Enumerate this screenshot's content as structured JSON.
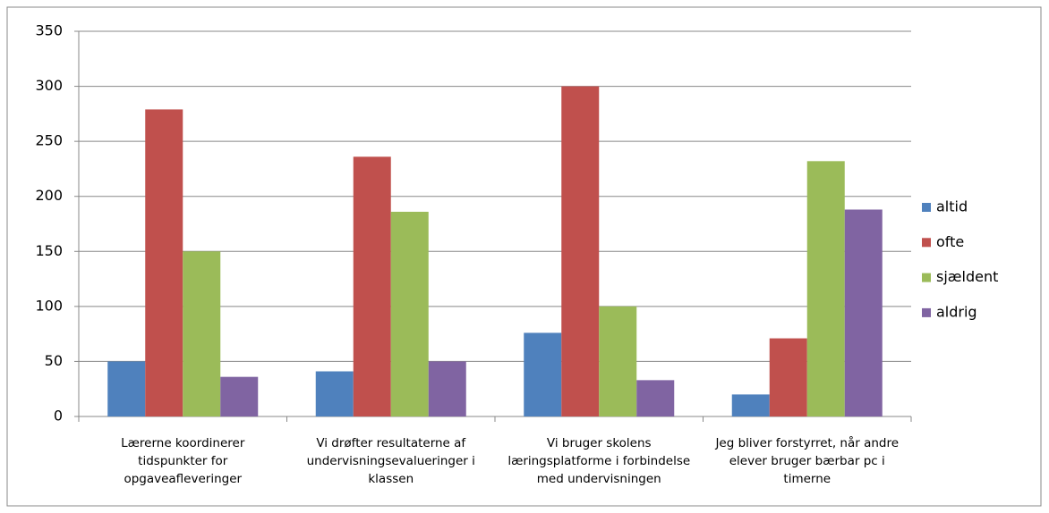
{
  "chart_data": {
    "type": "bar",
    "categories": [
      "Lærerne koordinerer tidspunkter for opgaveafleveringer",
      "Vi drøfter resultaterne af undervisningsevalueringer i klassen",
      "Vi bruger skolens læringsplatforme i forbindelse med undervisningen",
      "Jeg bliver forstyrret, når andre elever bruger bærbar pc i timerne"
    ],
    "series": [
      {
        "name": "altid",
        "color": "#4f81bd",
        "values": [
          50,
          41,
          76,
          20
        ]
      },
      {
        "name": "ofte",
        "color": "#c0504d",
        "values": [
          279,
          236,
          300,
          71
        ]
      },
      {
        "name": "sjældent",
        "color": "#9bbb59",
        "values": [
          150,
          186,
          100,
          232
        ]
      },
      {
        "name": "aldrig",
        "color": "#8064a2",
        "values": [
          36,
          50,
          33,
          188
        ]
      }
    ],
    "ylim": [
      0,
      350
    ],
    "yticks": [
      0,
      50,
      100,
      150,
      200,
      250,
      300,
      350
    ],
    "grid": true,
    "legend": "right"
  }
}
